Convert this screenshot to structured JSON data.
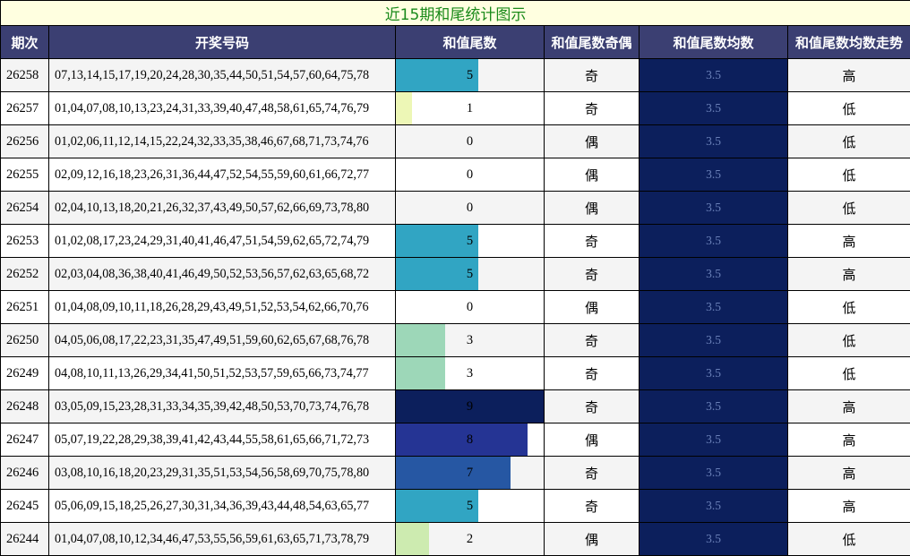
{
  "title": "近15期和尾统计图示",
  "columns": [
    "期次",
    "开奖号码",
    "和值尾数",
    "和值尾数奇偶",
    "和值尾数均数",
    "和值尾数均数走势"
  ],
  "bar_colors": {
    "0": "#ffffff",
    "1": "#edf7b6",
    "2": "#cdebb0",
    "3": "#9dd7b8",
    "5": "#31a5c3",
    "7": "#2657a3",
    "8": "#253494",
    "9": "#0c1f5c"
  },
  "chart_data": {
    "type": "table",
    "bar_max": 9,
    "rows": [
      {
        "period": "26258",
        "numbers": "07,13,14,15,17,19,20,24,28,30,35,44,50,51,54,57,60,64,75,78",
        "tail": 5,
        "tail_label": "5",
        "parity": "奇",
        "avg": "3.5",
        "trend": "高"
      },
      {
        "period": "26257",
        "numbers": "01,04,07,08,10,13,23,24,31,33,39,40,47,48,58,61,65,74,76,79",
        "tail": 1,
        "tail_label": "1",
        "parity": "奇",
        "avg": "3.5",
        "trend": "低"
      },
      {
        "period": "26256",
        "numbers": "01,02,06,11,12,14,15,22,24,32,33,35,38,46,67,68,71,73,74,76",
        "tail": 0,
        "tail_label": "0",
        "parity": "偶",
        "avg": "3.5",
        "trend": "低"
      },
      {
        "period": "26255",
        "numbers": "02,09,12,16,18,23,26,31,36,44,47,52,54,55,59,60,61,66,72,77",
        "tail": 0,
        "tail_label": "0",
        "parity": "偶",
        "avg": "3.5",
        "trend": "低"
      },
      {
        "period": "26254",
        "numbers": "02,04,10,13,18,20,21,26,32,37,43,49,50,57,62,66,69,73,78,80",
        "tail": 0,
        "tail_label": "0",
        "parity": "偶",
        "avg": "3.5",
        "trend": "低"
      },
      {
        "period": "26253",
        "numbers": "01,02,08,17,23,24,29,31,40,41,46,47,51,54,59,62,65,72,74,79",
        "tail": 5,
        "tail_label": "5",
        "parity": "奇",
        "avg": "3.5",
        "trend": "高"
      },
      {
        "period": "26252",
        "numbers": "02,03,04,08,36,38,40,41,46,49,50,52,53,56,57,62,63,65,68,72",
        "tail": 5,
        "tail_label": "5",
        "parity": "奇",
        "avg": "3.5",
        "trend": "高"
      },
      {
        "period": "26251",
        "numbers": "01,04,08,09,10,11,18,26,28,29,43,49,51,52,53,54,62,66,70,76",
        "tail": 0,
        "tail_label": "0",
        "parity": "偶",
        "avg": "3.5",
        "trend": "低"
      },
      {
        "period": "26250",
        "numbers": "04,05,06,08,17,22,23,31,35,47,49,51,59,60,62,65,67,68,76,78",
        "tail": 3,
        "tail_label": "3",
        "parity": "奇",
        "avg": "3.5",
        "trend": "低"
      },
      {
        "period": "26249",
        "numbers": "04,08,10,11,13,26,29,34,41,50,51,52,53,57,59,65,66,73,74,77",
        "tail": 3,
        "tail_label": "3",
        "parity": "奇",
        "avg": "3.5",
        "trend": "低"
      },
      {
        "period": "26248",
        "numbers": "03,05,09,15,23,28,31,33,34,35,39,42,48,50,53,70,73,74,76,78",
        "tail": 9,
        "tail_label": "9",
        "parity": "奇",
        "avg": "3.5",
        "trend": "高"
      },
      {
        "period": "26247",
        "numbers": "05,07,19,22,28,29,38,39,41,42,43,44,55,58,61,65,66,71,72,73",
        "tail": 8,
        "tail_label": "8",
        "parity": "偶",
        "avg": "3.5",
        "trend": "高"
      },
      {
        "period": "26246",
        "numbers": "03,08,10,16,18,20,23,29,31,35,51,53,54,56,58,69,70,75,78,80",
        "tail": 7,
        "tail_label": "7",
        "parity": "奇",
        "avg": "3.5",
        "trend": "高"
      },
      {
        "period": "26245",
        "numbers": "05,06,09,15,18,25,26,27,30,31,34,36,39,43,44,48,54,63,65,77",
        "tail": 5,
        "tail_label": "5",
        "parity": "奇",
        "avg": "3.5",
        "trend": "高"
      },
      {
        "period": "26244",
        "numbers": "01,04,07,08,10,12,34,46,47,53,55,56,59,61,63,65,71,73,78,79",
        "tail": 2,
        "tail_label": "2",
        "parity": "偶",
        "avg": "3.5",
        "trend": "低"
      }
    ]
  }
}
